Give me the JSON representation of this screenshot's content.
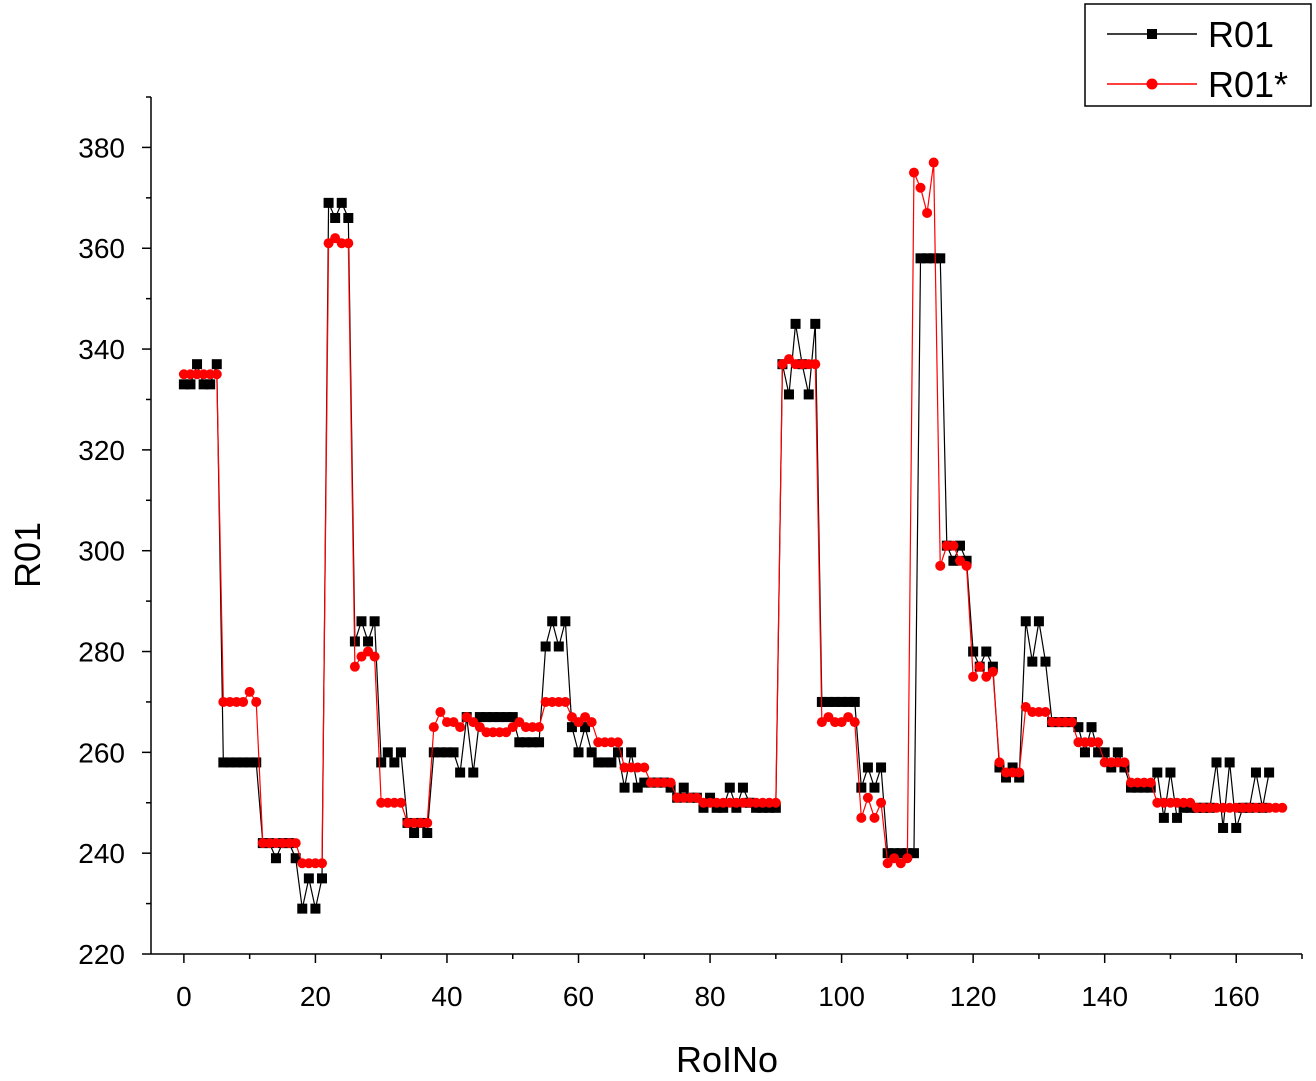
{
  "chart_data": {
    "type": "line",
    "xlabel": "RoINo",
    "ylabel": "R01",
    "xlim": [
      -5,
      170
    ],
    "ylim": [
      220,
      390
    ],
    "xticks": [
      0,
      20,
      40,
      60,
      80,
      100,
      120,
      140,
      160
    ],
    "yticks": [
      220,
      240,
      260,
      280,
      300,
      320,
      340,
      360,
      380
    ],
    "x_minor_step": 10,
    "y_minor_step": 10,
    "legend": {
      "position": "top-right",
      "entries": [
        {
          "label": "R01",
          "color": "#000000",
          "marker": "square"
        },
        {
          "label": "R01*",
          "color": "#ff0000",
          "marker": "circle"
        }
      ]
    },
    "series": [
      {
        "name": "R01",
        "color": "#000000",
        "marker": "square",
        "values": [
          333,
          333,
          337,
          333,
          333,
          337,
          258,
          258,
          258,
          258,
          258,
          258,
          242,
          242,
          239,
          242,
          242,
          239,
          229,
          235,
          229,
          235,
          369,
          366,
          369,
          366,
          282,
          286,
          282,
          286,
          258,
          260,
          258,
          260,
          246,
          244,
          246,
          244,
          260,
          260,
          260,
          260,
          256,
          267,
          256,
          267,
          267,
          267,
          267,
          267,
          267,
          262,
          262,
          262,
          262,
          281,
          286,
          281,
          286,
          265,
          260,
          265,
          260,
          258,
          258,
          258,
          260,
          253,
          260,
          253,
          254,
          254,
          254,
          254,
          253,
          251,
          253,
          251,
          251,
          249,
          251,
          249,
          249,
          253,
          249,
          253,
          250,
          249,
          249,
          249,
          249,
          337,
          331,
          345,
          337,
          331,
          345,
          270,
          270,
          270,
          270,
          270,
          270,
          253,
          257,
          253,
          257,
          240,
          240,
          240,
          240,
          240,
          358,
          358,
          358,
          358,
          301,
          298,
          301,
          298,
          280,
          277,
          280,
          277,
          257,
          255,
          257,
          255,
          286,
          278,
          286,
          278,
          266,
          266,
          266,
          266,
          265,
          260,
          265,
          260,
          260,
          257,
          260,
          257,
          253,
          253,
          253,
          253,
          256,
          247,
          256,
          247,
          249,
          249,
          249,
          249,
          249,
          258,
          245,
          258,
          245,
          249,
          249,
          256,
          249,
          256
        ]
      },
      {
        "name": "R01*",
        "color": "#ff0000",
        "marker": "circle",
        "values": [
          335,
          335,
          335,
          335,
          335,
          335,
          270,
          270,
          270,
          270,
          272,
          270,
          242,
          242,
          242,
          242,
          242,
          242,
          238,
          238,
          238,
          238,
          361,
          362,
          361,
          361,
          277,
          279,
          280,
          279,
          250,
          250,
          250,
          250,
          246,
          246,
          246,
          246,
          265,
          268,
          266,
          266,
          265,
          267,
          266,
          265,
          264,
          264,
          264,
          264,
          265,
          266,
          265,
          265,
          265,
          270,
          270,
          270,
          270,
          267,
          266,
          267,
          266,
          262,
          262,
          262,
          262,
          257,
          257,
          257,
          257,
          254,
          254,
          254,
          254,
          251,
          251,
          251,
          251,
          250,
          250,
          250,
          250,
          250,
          250,
          250,
          250,
          250,
          250,
          250,
          250,
          337,
          338,
          337,
          337,
          337,
          337,
          266,
          267,
          266,
          266,
          267,
          266,
          247,
          251,
          247,
          250,
          238,
          239,
          238,
          239,
          375,
          372,
          367,
          377,
          297,
          301,
          301,
          298,
          297,
          275,
          277,
          275,
          276,
          258,
          256,
          256,
          256,
          269,
          268,
          268,
          268,
          266,
          266,
          266,
          266,
          262,
          262,
          262,
          262,
          258,
          258,
          258,
          258,
          254,
          254,
          254,
          254,
          250,
          250,
          250,
          250,
          250,
          250,
          249,
          249,
          249,
          249,
          249,
          249,
          249,
          249,
          249,
          249,
          249,
          249,
          249,
          249
        ]
      }
    ]
  }
}
